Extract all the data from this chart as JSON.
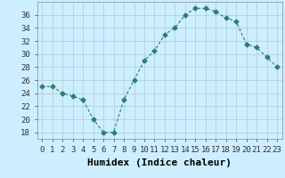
{
  "x": [
    0,
    1,
    2,
    3,
    4,
    5,
    6,
    7,
    8,
    9,
    10,
    11,
    12,
    13,
    14,
    15,
    16,
    17,
    18,
    19,
    20,
    21,
    22,
    23
  ],
  "y": [
    25,
    25,
    24,
    23.5,
    23,
    20,
    18,
    18,
    23,
    26,
    29,
    30.5,
    33,
    34,
    36,
    37,
    37,
    36.5,
    35.5,
    35,
    31.5,
    31,
    29.5,
    28
  ],
  "line_color": "#2e7d6e",
  "marker": "D",
  "marker_size": 2.5,
  "bg_color": "#cceeff",
  "grid_color": "#aacccc",
  "xlabel": "Humidex (Indice chaleur)",
  "xlabel_fontsize": 8,
  "xlim": [
    -0.5,
    23.5
  ],
  "ylim": [
    17,
    38
  ],
  "yticks": [
    18,
    20,
    22,
    24,
    26,
    28,
    30,
    32,
    34,
    36
  ],
  "xticks": [
    0,
    1,
    2,
    3,
    4,
    5,
    6,
    7,
    8,
    9,
    10,
    11,
    12,
    13,
    14,
    15,
    16,
    17,
    18,
    19,
    20,
    21,
    22,
    23
  ],
  "tick_fontsize": 6.5
}
